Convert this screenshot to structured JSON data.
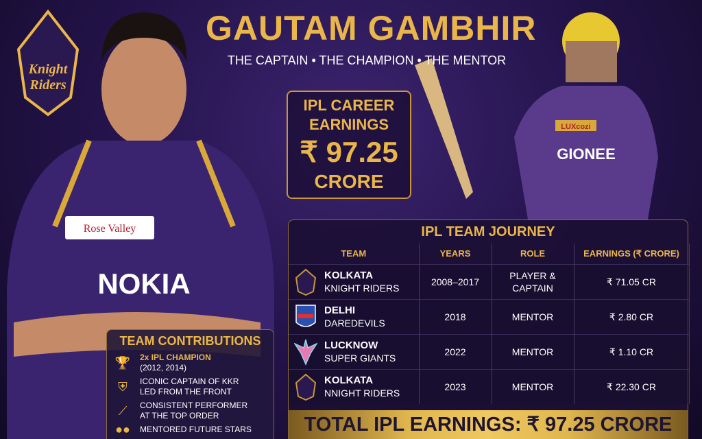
{
  "header": {
    "title": "GAUTAM GAMBHIR",
    "subtitle": "THE CAPTAIN • THE CHAMPION • THE MENTOR",
    "logo_text": "Kolkata Knight Riders"
  },
  "earnings_box": {
    "line1": "IPL CAREER",
    "line2": "EARNINGS",
    "value": "₹ 97.25",
    "unit": "CRORE"
  },
  "journey": {
    "title": "IPL TEAM JOURNEY",
    "columns": [
      "TEAM",
      "YEARS",
      "ROLE",
      "EARNINGS (₹ CRORE)"
    ],
    "rows": [
      {
        "team1": "KOLKATA",
        "team2": "KNIGHT RIDERS",
        "logo": "kkr-logo",
        "years": "2008–2017",
        "role": "PLAYER & CAPTAIN",
        "earnings": "₹ 71.05 CR"
      },
      {
        "team1": "DELHI",
        "team2": "DAREDEVILS",
        "logo": "dd-logo",
        "years": "2018",
        "role": "MENTOR",
        "earnings": "₹ 2.80 CR"
      },
      {
        "team1": "LUCKNOW",
        "team2": "SUPER GIANTS",
        "logo": "lsg-logo",
        "years": "2022",
        "role": "MENTOR",
        "earnings": "₹ 1.10 CR"
      },
      {
        "team1": "KOLKATA",
        "team2": "NNIGHT RIDERS",
        "logo": "kkr-logo",
        "years": "2023",
        "role": "MENTOR",
        "earnings": "₹ 22.30 CR"
      }
    ],
    "total": "TOTAL IPL EARNINGS: ₹ 97.25 CRORE"
  },
  "contributions": {
    "title": "TEAM CONTRIBUTIONS",
    "items": [
      {
        "icon": "trophy-icon",
        "line1": "2x IPL CHAMPION",
        "line2": "(2012, 2014)"
      },
      {
        "icon": "shield-icon",
        "line1": "ICONIC CAPTAIN OF KKR",
        "line2": "LED FROM THE FRONT"
      },
      {
        "icon": "bat-icon",
        "line1": "CONSISTENT PERFORMER",
        "line2": "AT THE TOP ORDER"
      },
      {
        "icon": "group-icon",
        "line1": "MENTORED FUTURE STARS",
        "line2": ""
      }
    ]
  },
  "jersey": {
    "left_sponsor": "Rose Valley",
    "left_main": "NOKIA",
    "right_sponsor": "LUXcozi",
    "right_main": "GIONEE"
  },
  "colors": {
    "gold": "#eab64a",
    "purple": "#3d2470"
  }
}
